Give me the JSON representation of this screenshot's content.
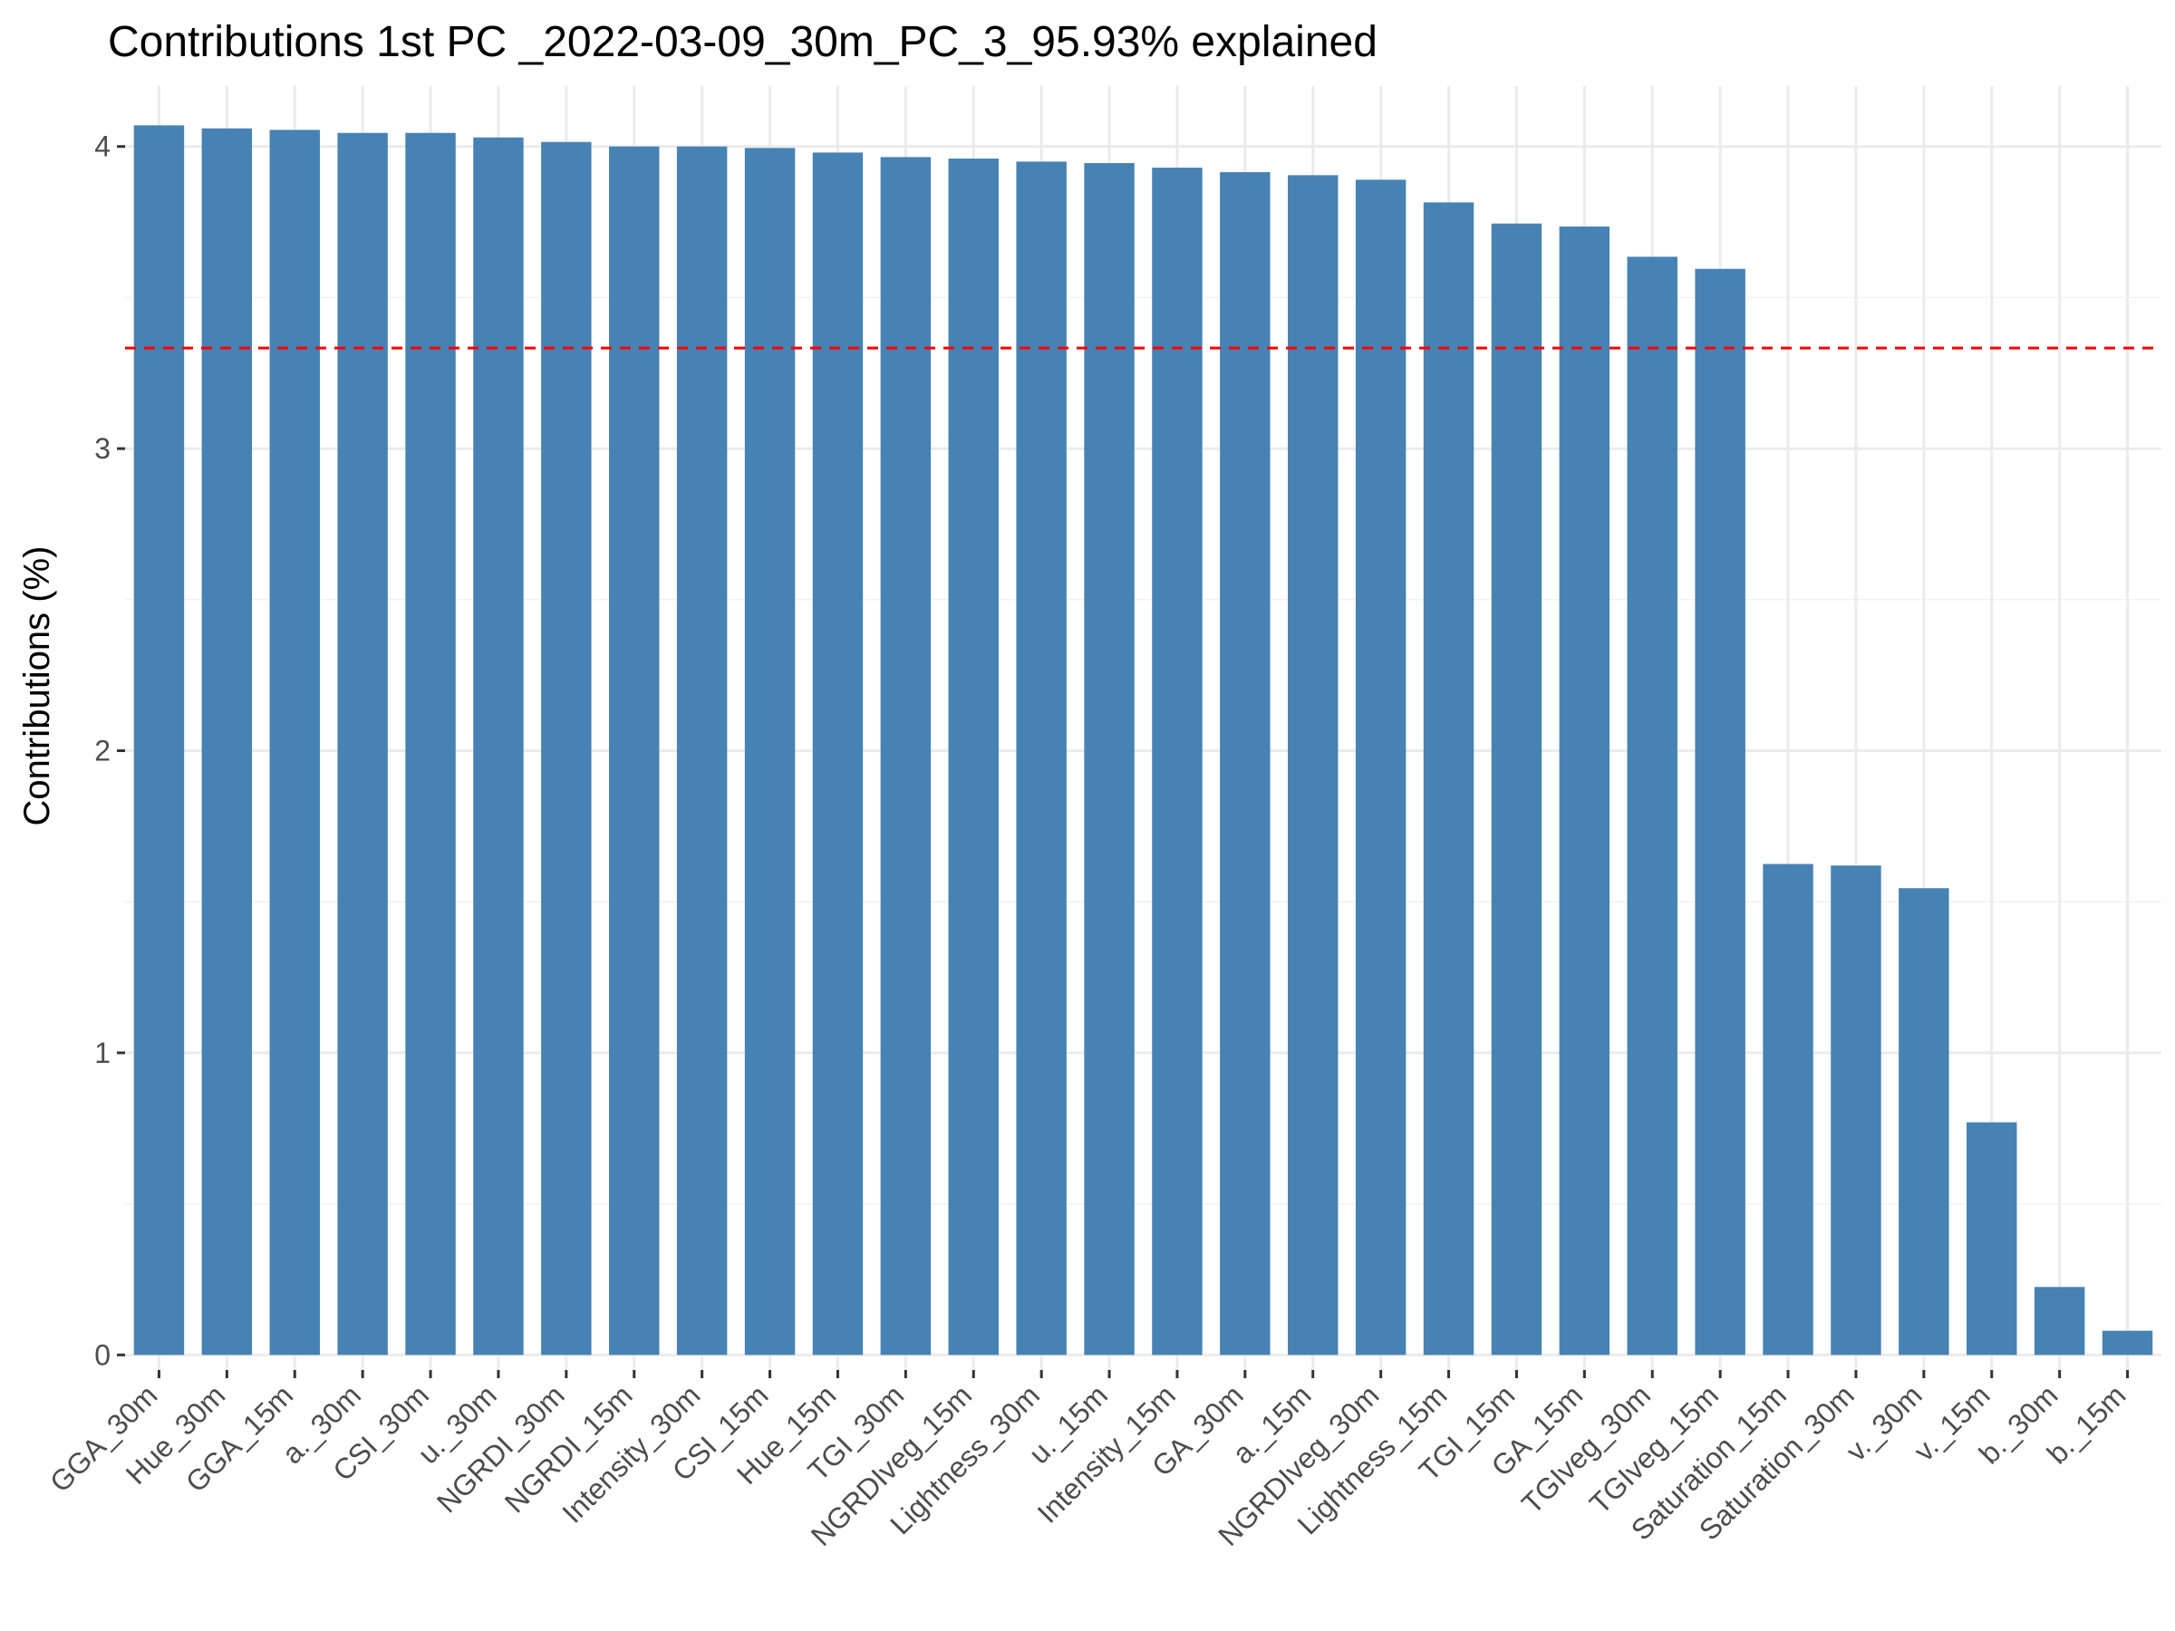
{
  "chart_data": {
    "type": "bar",
    "title": "Contributions 1st PC _2022-03-09_30m_PC_3_95.93% explained",
    "xlabel": "",
    "ylabel": "Contributions (%)",
    "ylim": [
      -0.05,
      4.2
    ],
    "yticks": [
      0,
      1,
      2,
      3,
      4
    ],
    "grid": true,
    "bar_color": "#4682B4",
    "reference_line": {
      "value": 3.333,
      "color": "#FF0000",
      "style": "dashed"
    },
    "categories": [
      "GGA_30m",
      "Hue_30m",
      "GGA_15m",
      "a._30m",
      "CSI_30m",
      "u._30m",
      "NGRDI_30m",
      "NGRDI_15m",
      "Intensity_30m",
      "CSI_15m",
      "Hue_15m",
      "TGI_30m",
      "NGRDIveg_15m",
      "Lightness_30m",
      "u._15m",
      "Intensity_15m",
      "GA_30m",
      "a._15m",
      "NGRDIveg_30m",
      "Lightness_15m",
      "TGI_15m",
      "GA_15m",
      "TGIveg_30m",
      "TGIveg_15m",
      "Saturation_15m",
      "Saturation_30m",
      "v._30m",
      "v._15m",
      "b._30m",
      "b._15m"
    ],
    "values": [
      4.07,
      4.06,
      4.055,
      4.045,
      4.045,
      4.03,
      4.015,
      4.0,
      4.0,
      3.995,
      3.98,
      3.965,
      3.96,
      3.95,
      3.945,
      3.93,
      3.915,
      3.905,
      3.89,
      3.815,
      3.745,
      3.735,
      3.635,
      3.595,
      1.625,
      1.62,
      1.545,
      0.77,
      0.225,
      0.08
    ]
  }
}
